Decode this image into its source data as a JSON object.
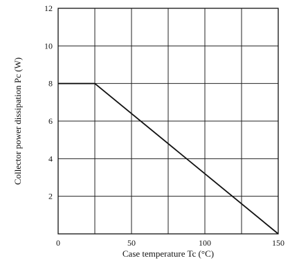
{
  "chart_data": {
    "type": "line",
    "title": "",
    "xlabel": "Case temperature  Tc (°C)",
    "ylabel": "Collector power dissipation  Pc (W)",
    "xlim": [
      0,
      150
    ],
    "ylim": [
      0,
      12
    ],
    "grid": true,
    "x_grid_step": 25,
    "y_grid_step": 2,
    "x_ticks": [
      {
        "value": 0,
        "label": "0"
      },
      {
        "value": 50,
        "label": "50"
      },
      {
        "value": 100,
        "label": "100"
      },
      {
        "value": 150,
        "label": "150"
      }
    ],
    "y_ticks": [
      {
        "value": 2,
        "label": "2"
      },
      {
        "value": 4,
        "label": "4"
      },
      {
        "value": 6,
        "label": "6"
      },
      {
        "value": 8,
        "label": "8"
      },
      {
        "value": 10,
        "label": "10"
      },
      {
        "value": 12,
        "label": "12"
      }
    ],
    "series": [
      {
        "x": [
          0,
          25,
          150
        ],
        "y": [
          8,
          8,
          0
        ]
      }
    ],
    "colors": {
      "line": "#111111",
      "grid": "#222222",
      "axis": "#111111"
    }
  }
}
